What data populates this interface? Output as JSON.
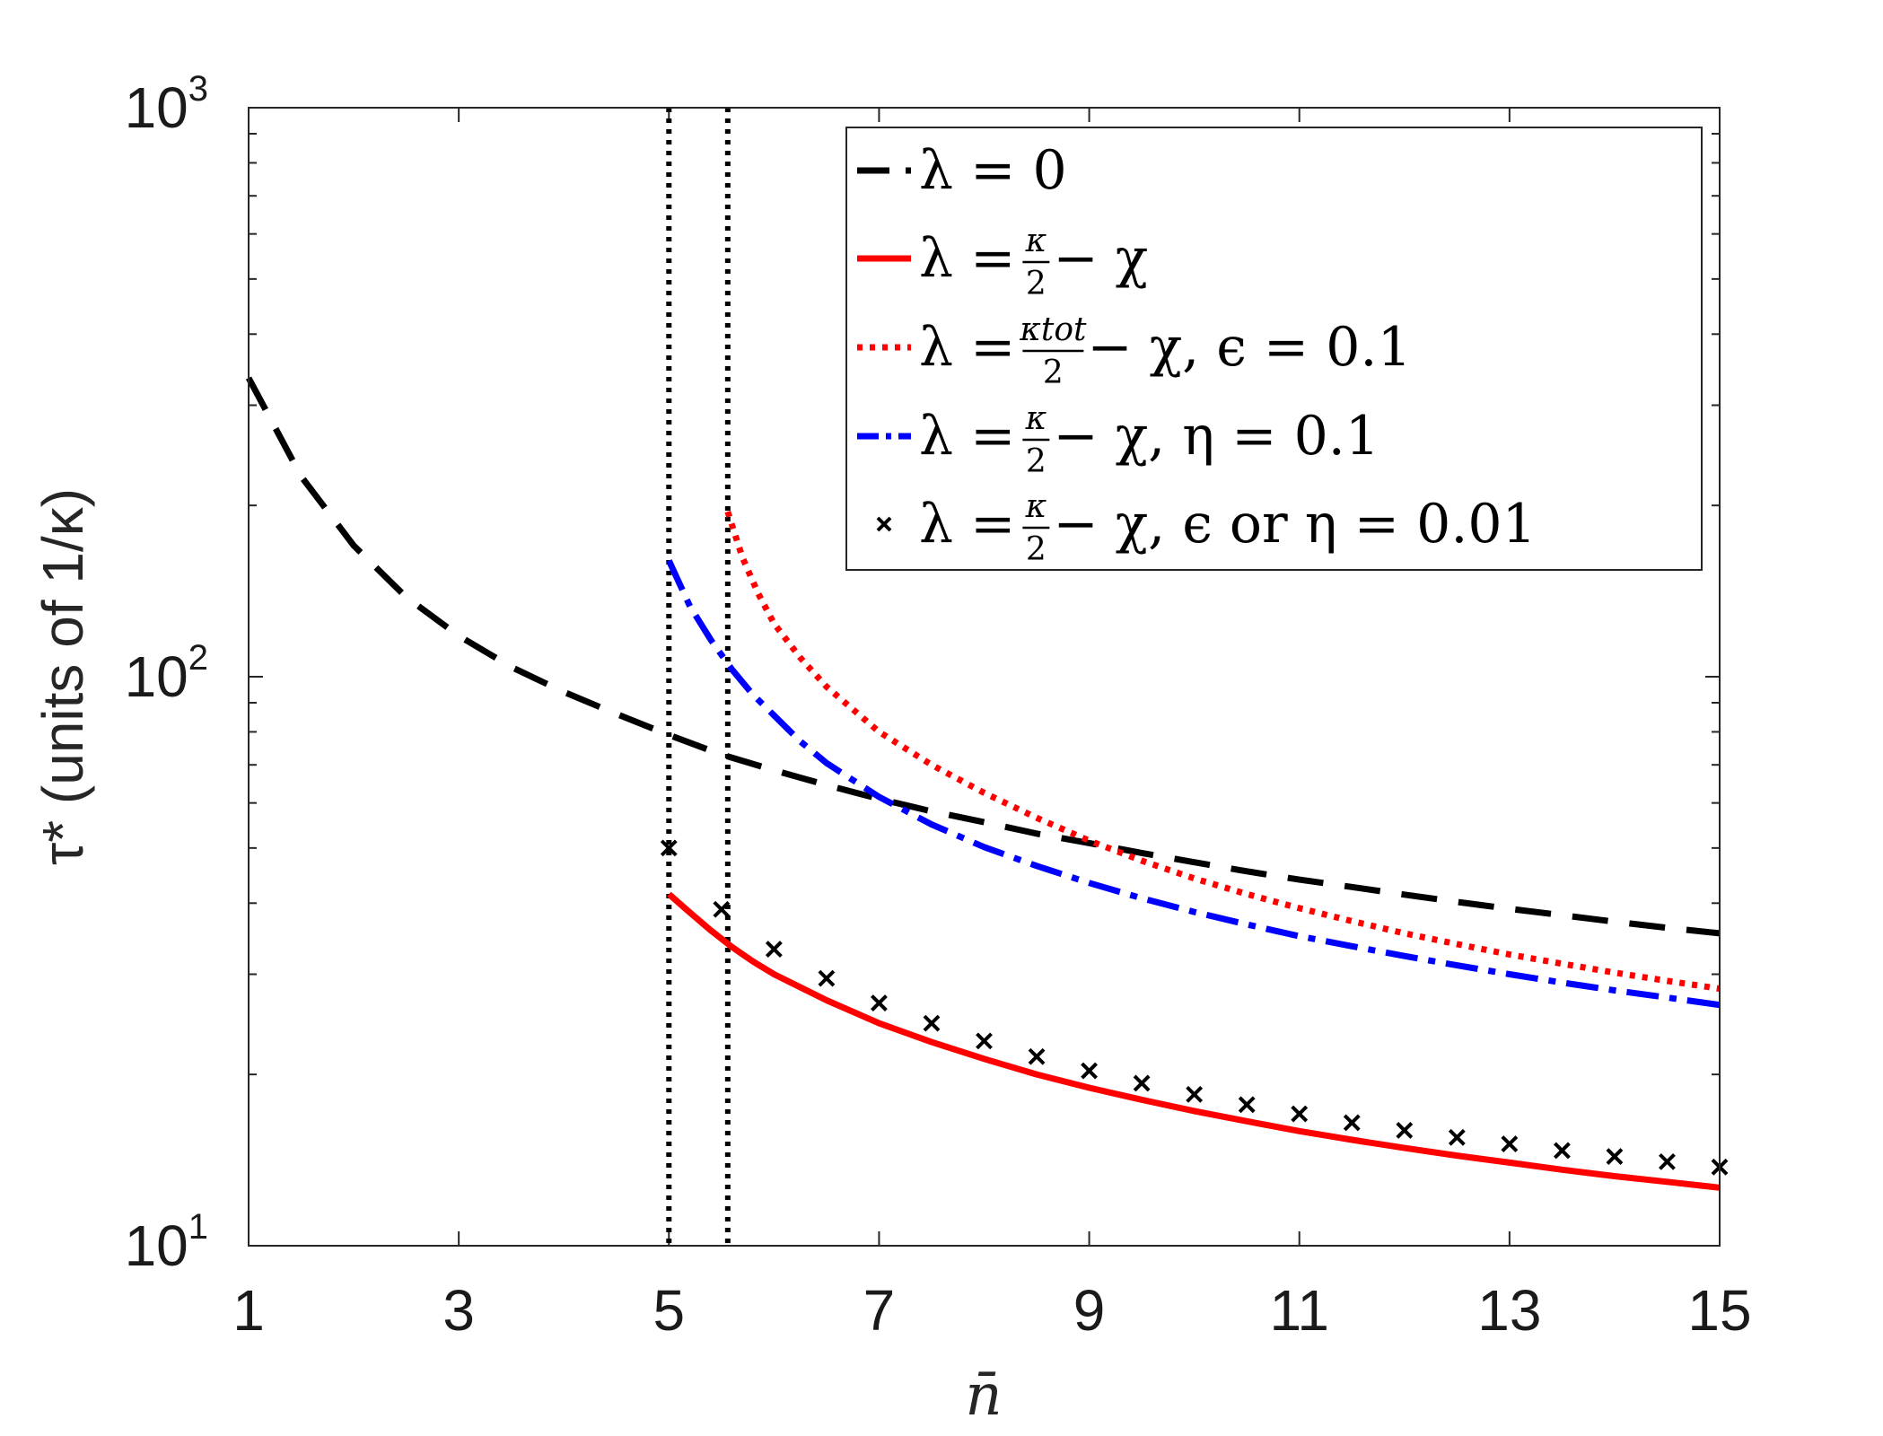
{
  "chart_data": {
    "type": "line",
    "xlabel": "n̄",
    "ylabel": "τ* (units of 1/κ)",
    "xlim": [
      1,
      15
    ],
    "ylim": [
      10,
      1000
    ],
    "yscale": "log",
    "xticks": [
      "1",
      "3",
      "5",
      "7",
      "9",
      "11",
      "13",
      "15"
    ],
    "yticks": [
      {
        "base": "10",
        "exp": "1",
        "value": 10
      },
      {
        "base": "10",
        "exp": "2",
        "value": 100
      },
      {
        "base": "10",
        "exp": "3",
        "value": 1000
      }
    ],
    "vlines": [
      5.0,
      5.56
    ],
    "legend_position": "top-right",
    "grid": false,
    "series": [
      {
        "key": "lambda0",
        "style": "dashed",
        "color": "#000000",
        "x": [
          1,
          1.5,
          2,
          2.5,
          3,
          3.5,
          4,
          4.5,
          5,
          5.5,
          6,
          6.5,
          7,
          7.5,
          8,
          8.5,
          9,
          9.5,
          10,
          10.5,
          11,
          11.5,
          12,
          12.5,
          13,
          13.5,
          14,
          14.5,
          15
        ],
        "y": [
          335,
          225,
          170,
          138,
          118,
          104,
          94,
          86,
          79,
          73,
          68.5,
          64.5,
          61,
          58,
          55.5,
          53,
          51,
          49,
          47.2,
          45.5,
          44,
          42.7,
          41.4,
          40.2,
          39.1,
          38.1,
          37.1,
          36.2,
          35.4
        ]
      },
      {
        "key": "kappa_half",
        "style": "solid",
        "color": "#ff0000",
        "x": [
          5.0,
          5.2,
          5.4,
          5.6,
          5.8,
          6.0,
          6.5,
          7.0,
          7.5,
          8.0,
          8.5,
          9.0,
          9.5,
          10.0,
          10.5,
          11.0,
          11.5,
          12.0,
          12.5,
          13.0,
          13.5,
          14.0,
          14.5,
          15.0
        ],
        "y": [
          41.5,
          38.5,
          35.8,
          33.5,
          31.6,
          30.0,
          27.0,
          24.6,
          22.8,
          21.3,
          20.0,
          18.95,
          18.05,
          17.25,
          16.55,
          15.9,
          15.35,
          14.85,
          14.4,
          14.0,
          13.6,
          13.25,
          12.95,
          12.65
        ]
      },
      {
        "key": "kappa_tot_eps",
        "style": "dotted",
        "color": "#ff0000",
        "x": [
          5.56,
          5.7,
          5.85,
          6.0,
          6.25,
          6.5,
          7.0,
          7.5,
          8.0,
          8.5,
          9.0,
          9.5,
          10.0,
          10.5,
          11.0,
          11.5,
          12.0,
          12.5,
          13.0,
          13.5,
          14.0,
          14.5,
          15.0
        ],
        "y": [
          195,
          162,
          140,
          124,
          108,
          96,
          80,
          70,
          62.5,
          56.5,
          51.5,
          47.5,
          44.2,
          41.5,
          39.2,
          37.2,
          35.4,
          33.9,
          32.5,
          31.3,
          30.2,
          29.2,
          28.3
        ]
      },
      {
        "key": "kappa_half_eta",
        "style": "dashdot",
        "color": "#0000ff",
        "x": [
          5.0,
          5.2,
          5.4,
          5.6,
          5.8,
          6.0,
          6.25,
          6.5,
          7.0,
          7.5,
          8.0,
          8.5,
          9.0,
          9.5,
          10.0,
          10.5,
          11.0,
          11.5,
          12.0,
          12.5,
          13.0,
          13.5,
          14.0,
          14.5,
          15.0
        ],
        "y": [
          160,
          133,
          116,
          103,
          93,
          85.5,
          77,
          70.5,
          61.5,
          55,
          50.2,
          46.5,
          43.4,
          40.8,
          38.6,
          36.7,
          35.0,
          33.6,
          32.3,
          31.1,
          30.0,
          29.0,
          28.1,
          27.3,
          26.5
        ]
      },
      {
        "key": "small_eps_eta",
        "style": "markers",
        "color": "#000000",
        "x": [
          5.0,
          5.5,
          6.0,
          6.5,
          7.0,
          7.5,
          8.0,
          8.5,
          9.0,
          9.5,
          10.0,
          10.5,
          11.0,
          11.5,
          12.0,
          12.5,
          13.0,
          13.5,
          14.0,
          14.5,
          15.0
        ],
        "y": [
          50,
          39,
          33.2,
          29.5,
          26.7,
          24.6,
          22.9,
          21.5,
          20.3,
          19.3,
          18.45,
          17.7,
          17.05,
          16.45,
          15.95,
          15.5,
          15.1,
          14.7,
          14.35,
          14.05,
          13.75
        ]
      }
    ]
  },
  "legend": [
    {
      "lhs": "λ = 0",
      "frac": null,
      "tail": ""
    },
    {
      "lhs": "λ = ",
      "frac": {
        "num": "κ",
        "den": "2"
      },
      "tail": " − χ"
    },
    {
      "lhs": "λ = ",
      "frac": {
        "num": "κtot",
        "den": "2"
      },
      "tail": " − χ,  ϵ = 0.1"
    },
    {
      "lhs": "λ = ",
      "frac": {
        "num": "κ",
        "den": "2"
      },
      "tail": " − χ,  η = 0.1"
    },
    {
      "lhs": "λ = ",
      "frac": {
        "num": "κ",
        "den": "2"
      },
      "tail": " − χ,  ϵ or η = 0.01"
    }
  ]
}
